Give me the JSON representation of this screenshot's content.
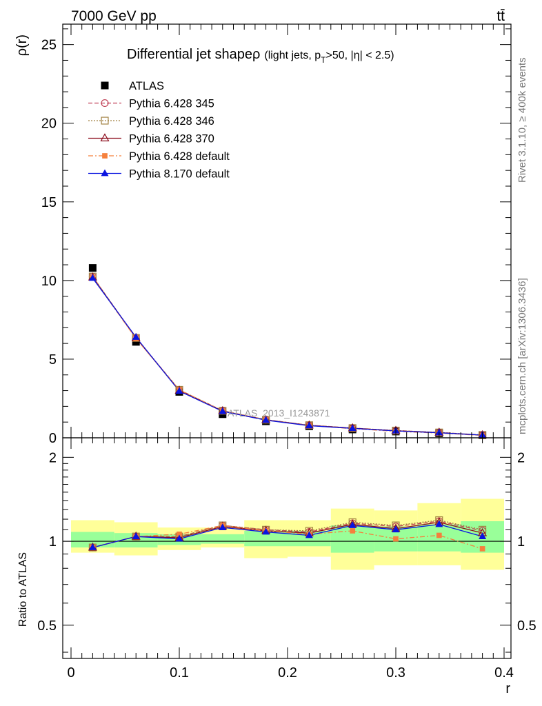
{
  "header": {
    "left": "7000 GeV pp",
    "right": "tt̄"
  },
  "side_text": {
    "rivet": "Rivet 3.1.10, ≥ 400k events",
    "mcplots": "mcplots.cern.ch [arXiv:1306.3436]"
  },
  "watermark": "ATLAS_2013_I1243871",
  "colors": {
    "atlas": "#000000",
    "p345": "#bf3f54",
    "p346": "#a08040",
    "p370": "#8b0a1a",
    "p6def": "#f5803c",
    "p8def": "#0a14e0",
    "band_inner": "#99ff99",
    "band_outer": "#ffff99"
  },
  "chart_data": [
    {
      "type": "scatter",
      "title_main": "Differential jet shape",
      "title_rho": "ρ",
      "title_sub_a": "(light jets, p",
      "title_sub_t": "T",
      "title_sub_b": ">50, |η| < 2.5)",
      "xlabel": "r",
      "ylabel": "ρ(r)",
      "xlim": [
        0,
        0.4
      ],
      "ylim": [
        0,
        26.3
      ],
      "yticks": [
        0,
        5,
        10,
        15,
        20,
        25
      ],
      "ytick_labels": [
        "0",
        "5",
        "10",
        "15",
        "20",
        "25"
      ],
      "x": [
        0.02,
        0.06,
        0.1,
        0.14,
        0.18,
        0.22,
        0.26,
        0.3,
        0.34,
        0.38
      ],
      "legend_position": "top-left",
      "series": [
        {
          "name": "ATLAS",
          "key": "atlas",
          "marker": "square-filled",
          "line": "none",
          "values": [
            10.8,
            6.1,
            2.92,
            1.5,
            1.05,
            0.73,
            0.53,
            0.4,
            0.28,
            0.16
          ]
        },
        {
          "name": "Pythia 6.428 345",
          "key": "p345",
          "marker": "circle-open",
          "line": "dashed",
          "values": [
            10.25,
            6.35,
            3.05,
            1.72,
            1.15,
            0.8,
            0.62,
            0.46,
            0.34,
            0.18
          ]
        },
        {
          "name": "Pythia 6.428 346",
          "key": "p346",
          "marker": "square-open",
          "line": "dotted",
          "values": [
            10.25,
            6.35,
            3.05,
            1.72,
            1.15,
            0.8,
            0.62,
            0.46,
            0.34,
            0.18
          ]
        },
        {
          "name": "Pythia 6.428 370",
          "key": "p370",
          "marker": "triangle-open",
          "line": "solid",
          "values": [
            10.2,
            6.35,
            3.0,
            1.7,
            1.14,
            0.79,
            0.61,
            0.45,
            0.33,
            0.17
          ]
        },
        {
          "name": "Pythia 6.428 default",
          "key": "p6def",
          "marker": "square-filled-small",
          "line": "dashdot",
          "values": [
            10.2,
            6.3,
            3.05,
            1.7,
            1.13,
            0.78,
            0.58,
            0.41,
            0.3,
            0.15
          ]
        },
        {
          "name": "Pythia 8.170 default",
          "key": "p8def",
          "marker": "triangle-filled",
          "line": "solid",
          "values": [
            10.15,
            6.4,
            2.97,
            1.68,
            1.12,
            0.77,
            0.6,
            0.44,
            0.32,
            0.17
          ]
        }
      ]
    },
    {
      "type": "scatter",
      "ylabel": "Ratio to ATLAS",
      "xlabel": "r",
      "xlim": [
        0,
        0.4
      ],
      "ylim": [
        0.38,
        2.35
      ],
      "yscale": "log",
      "yticks": [
        0.5,
        1,
        2
      ],
      "ytick_labels": [
        "0.5",
        "1",
        "2"
      ],
      "xticks": [
        0,
        0.1,
        0.2,
        0.3,
        0.4
      ],
      "xtick_labels": [
        "0",
        "0.1",
        "0.2",
        "0.3",
        "0.4"
      ],
      "x": [
        0.02,
        0.06,
        0.1,
        0.14,
        0.18,
        0.22,
        0.26,
        0.3,
        0.34,
        0.38
      ],
      "bands": {
        "x_edges": [
          0.0,
          0.04,
          0.08,
          0.12,
          0.16,
          0.2,
          0.24,
          0.28,
          0.32,
          0.36,
          0.4
        ],
        "inner_low": [
          0.95,
          0.95,
          0.97,
          0.98,
          0.96,
          0.96,
          0.91,
          0.92,
          0.92,
          0.91
        ],
        "inner_high": [
          1.08,
          1.07,
          1.06,
          1.06,
          1.09,
          1.09,
          1.14,
          1.13,
          1.15,
          1.18
        ],
        "outer_low": [
          0.91,
          0.89,
          0.93,
          0.95,
          0.87,
          0.88,
          0.79,
          0.82,
          0.82,
          0.79
        ],
        "outer_high": [
          1.19,
          1.17,
          1.12,
          1.12,
          1.19,
          1.19,
          1.31,
          1.29,
          1.37,
          1.42
        ]
      },
      "series": [
        {
          "name": "Pythia 6.428 345",
          "key": "p345",
          "values": [
            0.95,
            1.04,
            1.04,
            1.14,
            1.1,
            1.08,
            1.16,
            1.13,
            1.18,
            1.09
          ]
        },
        {
          "name": "Pythia 6.428 346",
          "key": "p346",
          "values": [
            0.95,
            1.04,
            1.04,
            1.14,
            1.1,
            1.09,
            1.17,
            1.14,
            1.19,
            1.1
          ]
        },
        {
          "name": "Pythia 6.428 370",
          "key": "p370",
          "values": [
            0.95,
            1.04,
            1.03,
            1.13,
            1.09,
            1.07,
            1.15,
            1.11,
            1.17,
            1.07
          ]
        },
        {
          "name": "Pythia 6.428 default",
          "key": "p6def",
          "values": [
            0.95,
            1.04,
            1.06,
            1.14,
            1.09,
            1.06,
            1.09,
            1.02,
            1.05,
            0.94
          ]
        },
        {
          "name": "Pythia 8.170 default",
          "key": "p8def",
          "values": [
            0.95,
            1.04,
            1.02,
            1.12,
            1.08,
            1.05,
            1.14,
            1.1,
            1.15,
            1.04
          ]
        }
      ]
    }
  ]
}
